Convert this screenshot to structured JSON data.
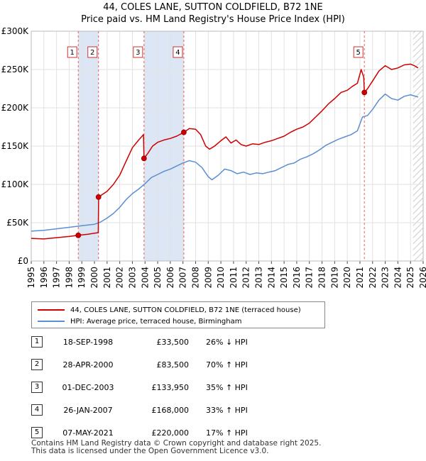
{
  "title": "44, COLES LANE, SUTTON COLDFIELD, B72 1NE",
  "subtitle": "Price paid vs. HM Land Registry's House Price Index (HPI)",
  "colors": {
    "property": "#cc0000",
    "hpi": "#5b8fd1",
    "band": "#dde6f5",
    "marker_line": "#e06060"
  },
  "chart_data": {
    "type": "line",
    "xlim": [
      1995,
      2026
    ],
    "ylim": [
      0,
      300000
    ],
    "xticks": [
      "1995",
      "1996",
      "1997",
      "1998",
      "1999",
      "2000",
      "2001",
      "2002",
      "2003",
      "2004",
      "2005",
      "2006",
      "2007",
      "2008",
      "2009",
      "2010",
      "2011",
      "2012",
      "2013",
      "2014",
      "2015",
      "2016",
      "2017",
      "2018",
      "2019",
      "2020",
      "2021",
      "2022",
      "2023",
      "2024",
      "2025",
      "2026"
    ],
    "yticks": [
      {
        "value": 0,
        "label": "£0"
      },
      {
        "value": 50000,
        "label": "£50K"
      },
      {
        "value": 100000,
        "label": "£100K"
      },
      {
        "value": 150000,
        "label": "£150K"
      },
      {
        "value": 200000,
        "label": "£200K"
      },
      {
        "value": 250000,
        "label": "£250K"
      },
      {
        "value": 300000,
        "label": "£300K"
      }
    ],
    "grid": true,
    "bands": [
      [
        1998.72,
        2000.32
      ],
      [
        2003.92,
        2007.07
      ]
    ],
    "forecast_start": 2025.2,
    "series": [
      {
        "name": "44, COLES LANE, SUTTON COLDFIELD, B72 1NE (terraced house)",
        "color": "#cc0000",
        "points": [
          [
            1995,
            29500
          ],
          [
            1996,
            28800
          ],
          [
            1997,
            30500
          ],
          [
            1998,
            32000
          ],
          [
            1998.71,
            33500
          ],
          [
            1999.5,
            35000
          ],
          [
            2000.3,
            37000
          ],
          [
            2000.33,
            83500
          ],
          [
            2001,
            91000
          ],
          [
            2001.5,
            100000
          ],
          [
            2002,
            112000
          ],
          [
            2002.5,
            130000
          ],
          [
            2003,
            148000
          ],
          [
            2003.5,
            158000
          ],
          [
            2003.88,
            165000
          ],
          [
            2003.92,
            133950
          ],
          [
            2004.2,
            140000
          ],
          [
            2004.6,
            150000
          ],
          [
            2005,
            155000
          ],
          [
            2005.5,
            158000
          ],
          [
            2006,
            160000
          ],
          [
            2006.5,
            163000
          ],
          [
            2007.07,
            168000
          ],
          [
            2007.5,
            173000
          ],
          [
            2008,
            172000
          ],
          [
            2008.4,
            165000
          ],
          [
            2008.8,
            150000
          ],
          [
            2009.1,
            146000
          ],
          [
            2009.5,
            150000
          ],
          [
            2010,
            157000
          ],
          [
            2010.4,
            162000
          ],
          [
            2010.8,
            154000
          ],
          [
            2011.2,
            158000
          ],
          [
            2011.6,
            152000
          ],
          [
            2012,
            150000
          ],
          [
            2012.5,
            153000
          ],
          [
            2013,
            152000
          ],
          [
            2013.5,
            155000
          ],
          [
            2014,
            157000
          ],
          [
            2014.5,
            160000
          ],
          [
            2015,
            163000
          ],
          [
            2015.5,
            168000
          ],
          [
            2016,
            172000
          ],
          [
            2016.5,
            175000
          ],
          [
            2017,
            180000
          ],
          [
            2017.5,
            188000
          ],
          [
            2018,
            196000
          ],
          [
            2018.5,
            205000
          ],
          [
            2019,
            212000
          ],
          [
            2019.5,
            220000
          ],
          [
            2020,
            223000
          ],
          [
            2020.4,
            228000
          ],
          [
            2020.8,
            232000
          ],
          [
            2021.1,
            250000
          ],
          [
            2021.3,
            240000
          ],
          [
            2021.35,
            220000
          ],
          [
            2021.6,
            225000
          ],
          [
            2022,
            235000
          ],
          [
            2022.5,
            248000
          ],
          [
            2023,
            255000
          ],
          [
            2023.5,
            250000
          ],
          [
            2024,
            252000
          ],
          [
            2024.5,
            256000
          ],
          [
            2025,
            257000
          ],
          [
            2025.3,
            255000
          ],
          [
            2025.6,
            252000
          ]
        ]
      },
      {
        "name": "HPI: Average price, terraced house, Birmingham",
        "color": "#5b8fd1",
        "points": [
          [
            1995,
            39000
          ],
          [
            1996,
            40000
          ],
          [
            1997,
            42000
          ],
          [
            1998,
            44000
          ],
          [
            1999,
            46000
          ],
          [
            2000,
            48000
          ],
          [
            2000.5,
            51000
          ],
          [
            2001,
            56000
          ],
          [
            2001.5,
            62000
          ],
          [
            2002,
            70000
          ],
          [
            2002.5,
            80000
          ],
          [
            2003,
            88000
          ],
          [
            2003.5,
            94000
          ],
          [
            2004,
            101000
          ],
          [
            2004.5,
            109000
          ],
          [
            2005,
            113000
          ],
          [
            2005.5,
            117000
          ],
          [
            2006,
            120000
          ],
          [
            2006.5,
            124000
          ],
          [
            2007,
            128000
          ],
          [
            2007.5,
            131000
          ],
          [
            2008,
            129000
          ],
          [
            2008.5,
            122000
          ],
          [
            2009,
            110000
          ],
          [
            2009.3,
            106000
          ],
          [
            2009.8,
            112000
          ],
          [
            2010.3,
            120000
          ],
          [
            2010.8,
            118000
          ],
          [
            2011.3,
            114000
          ],
          [
            2011.8,
            116000
          ],
          [
            2012.3,
            113000
          ],
          [
            2012.8,
            115000
          ],
          [
            2013.3,
            114000
          ],
          [
            2013.8,
            116000
          ],
          [
            2014.3,
            118000
          ],
          [
            2014.8,
            122000
          ],
          [
            2015.3,
            126000
          ],
          [
            2015.8,
            128000
          ],
          [
            2016.3,
            133000
          ],
          [
            2016.8,
            136000
          ],
          [
            2017.3,
            140000
          ],
          [
            2017.8,
            145000
          ],
          [
            2018.3,
            151000
          ],
          [
            2018.8,
            155000
          ],
          [
            2019.3,
            159000
          ],
          [
            2019.8,
            162000
          ],
          [
            2020.3,
            165000
          ],
          [
            2020.8,
            170000
          ],
          [
            2021.2,
            188000
          ],
          [
            2021.6,
            190000
          ],
          [
            2022,
            198000
          ],
          [
            2022.5,
            210000
          ],
          [
            2023,
            218000
          ],
          [
            2023.5,
            212000
          ],
          [
            2024,
            210000
          ],
          [
            2024.5,
            215000
          ],
          [
            2025,
            217000
          ],
          [
            2025.6,
            214000
          ]
        ]
      }
    ],
    "sales": [
      {
        "label": "1",
        "x": 1998.72,
        "y": 33500
      },
      {
        "label": "2",
        "x": 2000.32,
        "y": 83500
      },
      {
        "label": "3",
        "x": 2003.92,
        "y": 133950
      },
      {
        "label": "4",
        "x": 2007.07,
        "y": 168000
      },
      {
        "label": "5",
        "x": 2021.35,
        "y": 220000
      }
    ]
  },
  "legend": {
    "property": "44, COLES LANE, SUTTON COLDFIELD, B72 1NE (terraced house)",
    "hpi": "HPI: Average price, terraced house, Birmingham"
  },
  "sales_table": [
    {
      "num": "1",
      "date": "18-SEP-1998",
      "price": "£33,500",
      "hpi": "26% ↓ HPI"
    },
    {
      "num": "2",
      "date": "28-APR-2000",
      "price": "£83,500",
      "hpi": "70% ↑ HPI"
    },
    {
      "num": "3",
      "date": "01-DEC-2003",
      "price": "£133,950",
      "hpi": "35% ↑ HPI"
    },
    {
      "num": "4",
      "date": "26-JAN-2007",
      "price": "£168,000",
      "hpi": "33% ↑ HPI"
    },
    {
      "num": "5",
      "date": "07-MAY-2021",
      "price": "£220,000",
      "hpi": "17% ↑ HPI"
    }
  ],
  "footer": {
    "line1": "Contains HM Land Registry data © Crown copyright and database right 2025.",
    "line2": "This data is licensed under the Open Government Licence v3.0."
  }
}
